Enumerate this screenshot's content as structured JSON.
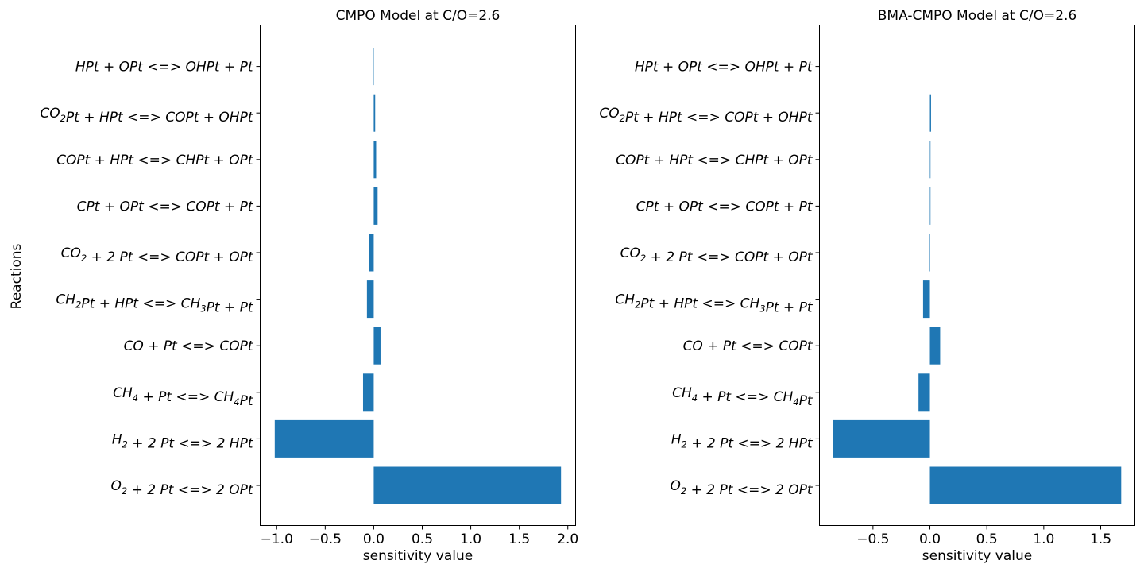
{
  "figure": {
    "ylabel": "Reactions"
  },
  "chart_data": [
    {
      "type": "bar",
      "orientation": "horizontal",
      "title": "CMPO Model at C/O=2.6",
      "xlabel": "sensitivity value",
      "ylabel": "Reactions",
      "categories": [
        "O_2 + 2 Pt <=> 2 OPt",
        "H_2 + 2 Pt <=> 2 HPt",
        "CH_4 + Pt <=> CH_4Pt",
        "CO + Pt <=> COPt",
        "CH_2Pt + HPt <=> CH_3Pt + Pt",
        "CO_2 + 2 Pt <=> COPt + OPt",
        "CPt + OPt <=> COPt + Pt",
        "COPt + HPt <=> CHPt + OPt",
        "CO_2Pt + HPt <=> COPt + OHPt",
        "HPt + OPt <=> OHPt + Pt"
      ],
      "values": [
        1.93,
        -1.02,
        -0.11,
        0.07,
        -0.07,
        -0.05,
        0.04,
        0.025,
        0.015,
        -0.01
      ],
      "xlim": [
        -1.17,
        2.08
      ],
      "xticks": [
        -1.0,
        -0.5,
        0.0,
        0.5,
        1.0,
        1.5,
        2.0
      ],
      "xtick_labels": [
        "−1.0",
        "−0.5",
        "0.0",
        "0.5",
        "1.0",
        "1.5",
        "2.0"
      ],
      "color": "#1f77b4",
      "grid": false
    },
    {
      "type": "bar",
      "orientation": "horizontal",
      "title": "BMA-CMPO Model at C/O=2.6",
      "xlabel": "sensitivity value",
      "ylabel": "",
      "categories": [
        "O_2 + 2 Pt <=> 2 OPt",
        "H_2 + 2 Pt <=> 2 HPt",
        "CH_4 + Pt <=> CH_4Pt",
        "CO + Pt <=> COPt",
        "CH_2Pt + HPt <=> CH_3Pt + Pt",
        "CO_2 + 2 Pt <=> COPt + OPt",
        "CPt + OPt <=> COPt + Pt",
        "COPt + HPt <=> CHPt + OPt",
        "CO_2Pt + HPt <=> COPt + OHPt",
        "HPt + OPt <=> OHPt + Pt"
      ],
      "values": [
        1.68,
        -0.85,
        -0.1,
        0.09,
        -0.06,
        -0.005,
        0.005,
        0.005,
        0.01,
        0.0
      ],
      "xlim": [
        -0.97,
        1.8
      ],
      "xticks": [
        -0.5,
        0.0,
        0.5,
        1.0,
        1.5
      ],
      "xtick_labels": [
        "−0.5",
        "0.0",
        "0.5",
        "1.0",
        "1.5"
      ],
      "color": "#1f77b4",
      "grid": false
    }
  ]
}
